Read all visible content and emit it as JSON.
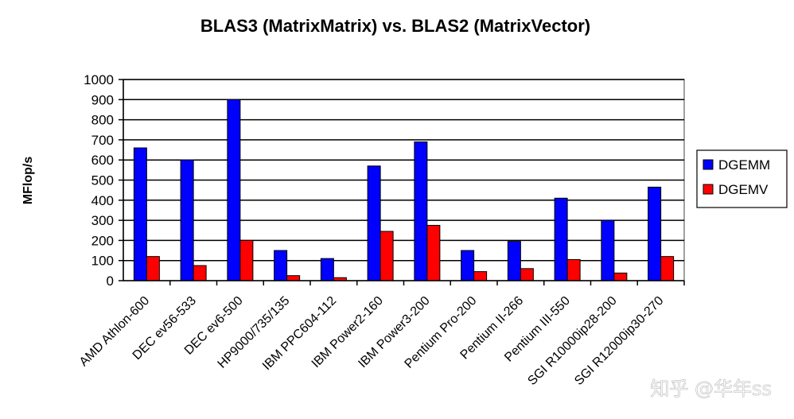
{
  "chart_data": {
    "type": "bar",
    "title": "BLAS3 (MatrixMatrix) vs. BLAS2 (MatrixVector)",
    "xlabel": "",
    "ylabel": "MFlop/s",
    "ylim": [
      0,
      1000
    ],
    "yticks": [
      0,
      100,
      200,
      300,
      400,
      500,
      600,
      700,
      800,
      900,
      1000
    ],
    "grid": true,
    "legend_position": "right",
    "categories": [
      "AMD Athlon-600",
      "DEC ev56-533",
      "DEC ev6-500",
      "HP9000/735/135",
      "IBM PPC604-112",
      "IBM Power2-160",
      "IBM Power3-200",
      "Pentium Pro-200",
      "Pentium II-266",
      "Pentium III-550",
      "SGI R10000ip28-200",
      "SGI R12000ip30-270"
    ],
    "series": [
      {
        "name": "DGEMM",
        "color": "#0000ff",
        "values": [
          660,
          600,
          900,
          150,
          110,
          570,
          690,
          150,
          195,
          410,
          300,
          465
        ]
      },
      {
        "name": "DGEMV",
        "color": "#ff0000",
        "values": [
          120,
          75,
          200,
          25,
          15,
          245,
          275,
          45,
          60,
          105,
          38,
          120
        ]
      }
    ]
  },
  "watermark": "知乎 @华年ss"
}
